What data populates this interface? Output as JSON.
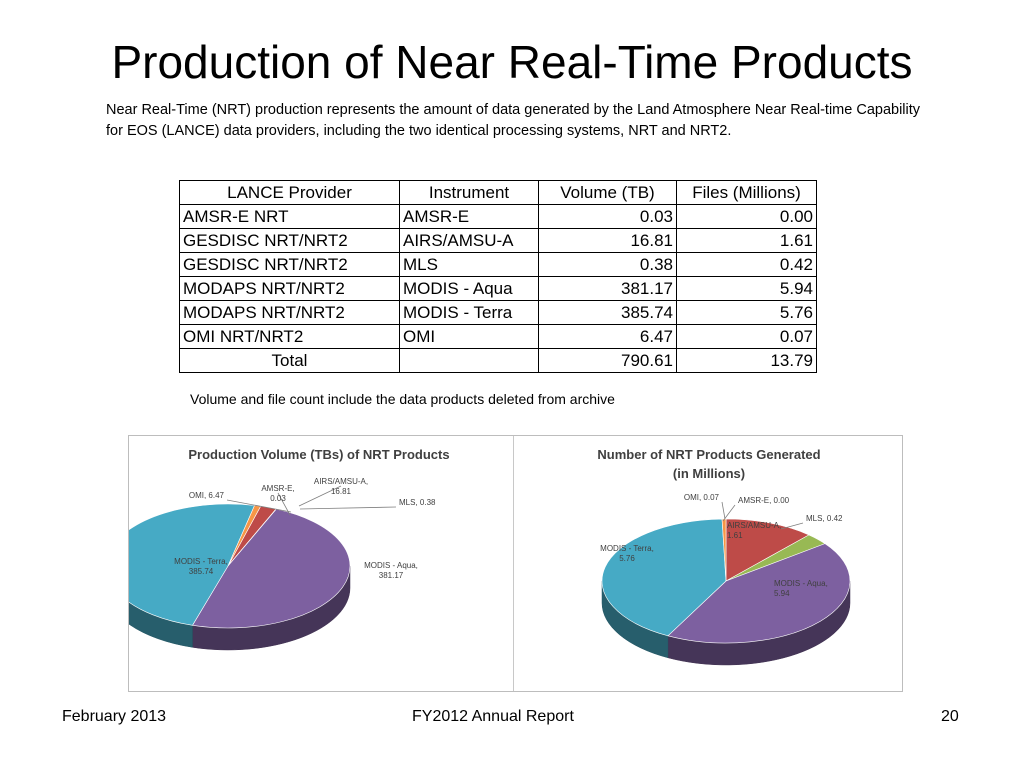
{
  "slide": {
    "title": "Production of Near Real-Time Products",
    "intro": "Near Real-Time (NRT) production represents the amount of data generated by the Land Atmosphere Near Real-time Capability for EOS (LANCE) data providers, including the two identical processing systems, NRT and NRT2.",
    "note": "Volume and file count include the data products deleted from archive"
  },
  "table": {
    "headers": [
      "LANCE Provider",
      "Instrument",
      "Volume (TB)",
      "Files (Millions)"
    ],
    "rows": [
      [
        "AMSR-E NRT",
        "AMSR-E",
        "0.03",
        "0.00"
      ],
      [
        "GESDISC NRT/NRT2",
        "AIRS/AMSU-A",
        "16.81",
        "1.61"
      ],
      [
        "GESDISC NRT/NRT2",
        "MLS",
        "0.38",
        "0.42"
      ],
      [
        "MODAPS NRT/NRT2",
        "MODIS - Aqua",
        "381.17",
        "5.94"
      ],
      [
        "MODAPS NRT/NRT2",
        "MODIS - Terra",
        "385.74",
        "5.76"
      ],
      [
        "OMI NRT/NRT2",
        "OMI",
        "6.47",
        "0.07"
      ]
    ],
    "total": [
      "Total",
      "",
      "790.61",
      "13.79"
    ]
  },
  "chart_data": [
    {
      "type": "pie",
      "title": "Production Volume (TBs) of  NRT Products",
      "categories": [
        "AMSR-E",
        "AIRS/AMSU-A",
        "MLS",
        "MODIS - Aqua",
        "MODIS - Terra",
        "OMI"
      ],
      "values": [
        0.03,
        16.81,
        0.38,
        381.17,
        385.74,
        6.47
      ],
      "labels": [
        "AMSR-E,\n0.03",
        "AIRS/AMSU-A,\n16.81",
        "MLS, 0.38",
        "MODIS - Aqua,\n381.17",
        "MODIS - Terra,\n385.74",
        "OMI, 6.47"
      ],
      "colors": [
        "#4a7ebb",
        "#be4b48",
        "#98b954",
        "#7d60a0",
        "#46aac5",
        "#f79646"
      ]
    },
    {
      "type": "pie",
      "title": "Number of NRT Products Generated\n(in Millions)",
      "categories": [
        "AMSR-E",
        "AIRS/AMSU-A",
        "MLS",
        "MODIS - Aqua",
        "MODIS - Terra",
        "OMI"
      ],
      "values": [
        0.0,
        1.61,
        0.42,
        5.94,
        5.76,
        0.07
      ],
      "labels": [
        "AMSR-E, 0.00",
        "AIRS/AMSU-A,\n1.61",
        "MLS, 0.42",
        "MODIS - Aqua,\n5.94",
        "MODIS - Terra,\n5.76",
        "OMI, 0.07"
      ],
      "colors": [
        "#4a7ebb",
        "#be4b48",
        "#98b954",
        "#7d60a0",
        "#46aac5",
        "#f79646"
      ]
    }
  ],
  "footer": {
    "date": "February 2013",
    "report": "FY2012 Annual Report",
    "page": "20"
  }
}
